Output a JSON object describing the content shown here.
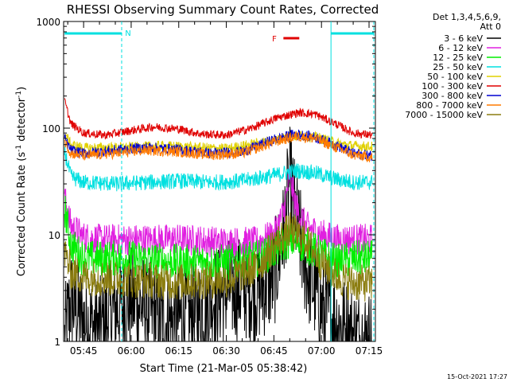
{
  "chart_data": {
    "type": "line",
    "title": "RHESSI Observing Summary Count Rates, Corrected",
    "xlabel": "Start Time (21-Mar-05 05:38:42)",
    "ylabel_main": "Corrected Count Rate (s",
    "ylabel_sup1": "-1",
    "ylabel_mid": " detector",
    "ylabel_sup2": "-1",
    "ylabel_end": ")",
    "footer": "15-Oct-2021 17:27",
    "yscale": "log",
    "ylim": [
      1,
      1000
    ],
    "xlim": [
      "05:38:42",
      "07:17:00"
    ],
    "y_ticks": [
      {
        "value": 1,
        "label": "1"
      },
      {
        "value": 10,
        "label": "10"
      },
      {
        "value": 100,
        "label": "100"
      },
      {
        "value": 1000,
        "label": "1000"
      }
    ],
    "x_ticks": [
      "05:45",
      "06:00",
      "06:15",
      "06:30",
      "06:45",
      "07:00",
      "07:15"
    ],
    "legend": {
      "header1": "Det 1,3,4,5,6,9,",
      "header2": "Att 0",
      "entries": [
        {
          "label": "3 - 6 keV",
          "color": "#000000"
        },
        {
          "label": "6 - 12 keV",
          "color": "#e020e0"
        },
        {
          "label": "12 - 25 keV",
          "color": "#00ee00"
        },
        {
          "label": "25 - 50 keV",
          "color": "#00e0e0"
        },
        {
          "label": "50 - 100 keV",
          "color": "#e0d000"
        },
        {
          "label": "100 - 300 keV",
          "color": "#e00000"
        },
        {
          "label": "300 - 800 keV",
          "color": "#0000d0"
        },
        {
          "label": "800 - 7000 keV",
          "color": "#ff7a00"
        },
        {
          "label": "7000 - 15000 keV",
          "color": "#8b7d10"
        }
      ]
    },
    "annotations": {
      "night_label": "N",
      "flare_label": "F",
      "night_color": "#00e0e0",
      "flare_color": "#e00000",
      "night_intervals": [
        [
          "05:39:00",
          "05:57:00"
        ],
        [
          "07:03:00",
          "07:16:30"
        ]
      ],
      "flare_interval": [
        "06:48:00",
        "06:53:00"
      ],
      "night_boundaries": [
        "05:57:00",
        "07:03:00",
        "07:16:30"
      ]
    },
    "series": [
      {
        "name": "3 - 6 keV",
        "color": "#000000",
        "noise": 1.0,
        "points": [
          [
            "05:39",
            1.0
          ],
          [
            "05:41",
            2.5
          ],
          [
            "05:45",
            1.5
          ],
          [
            "05:50",
            1.3
          ],
          [
            "05:55",
            2.0
          ],
          [
            "06:00",
            2.5
          ],
          [
            "06:05",
            2.0
          ],
          [
            "06:10",
            1.5
          ],
          [
            "06:15",
            1.6
          ],
          [
            "06:20",
            1.7
          ],
          [
            "06:25",
            2.5
          ],
          [
            "06:30",
            3.0
          ],
          [
            "06:35",
            3.2
          ],
          [
            "06:40",
            3.0
          ],
          [
            "06:45",
            4.0
          ],
          [
            "06:48",
            10
          ],
          [
            "06:50",
            34
          ],
          [
            "06:52",
            14
          ],
          [
            "06:55",
            5
          ],
          [
            "06:58",
            3
          ],
          [
            "07:00",
            2.0
          ],
          [
            "07:05",
            1.5
          ],
          [
            "07:10",
            1.1
          ],
          [
            "07:16",
            1.0
          ]
        ]
      },
      {
        "name": "6 - 12 keV",
        "color": "#e020e0",
        "noise": 0.3,
        "points": [
          [
            "05:39",
            22
          ],
          [
            "05:41",
            12
          ],
          [
            "05:45",
            9.5
          ],
          [
            "05:50",
            9
          ],
          [
            "06:00",
            9
          ],
          [
            "06:15",
            9
          ],
          [
            "06:30",
            8.5
          ],
          [
            "06:40",
            8.5
          ],
          [
            "06:45",
            10
          ],
          [
            "06:48",
            16
          ],
          [
            "06:50",
            36
          ],
          [
            "06:52",
            18
          ],
          [
            "06:55",
            12
          ],
          [
            "07:00",
            10
          ],
          [
            "07:05",
            9
          ],
          [
            "07:10",
            9
          ],
          [
            "07:16",
            9
          ]
        ]
      },
      {
        "name": "12 - 25 keV",
        "color": "#00ee00",
        "noise": 0.35,
        "points": [
          [
            "05:39",
            18
          ],
          [
            "05:41",
            8
          ],
          [
            "05:45",
            6
          ],
          [
            "05:50",
            6
          ],
          [
            "06:00",
            6
          ],
          [
            "06:15",
            5.5
          ],
          [
            "06:30",
            5.5
          ],
          [
            "06:40",
            6
          ],
          [
            "06:45",
            7
          ],
          [
            "06:50",
            9
          ],
          [
            "06:55",
            8
          ],
          [
            "07:00",
            6.5
          ],
          [
            "07:05",
            5.5
          ],
          [
            "07:10",
            6
          ],
          [
            "07:16",
            6
          ]
        ]
      },
      {
        "name": "25 - 50 keV",
        "color": "#00e0e0",
        "noise": 0.15,
        "points": [
          [
            "05:39",
            60
          ],
          [
            "05:41",
            35
          ],
          [
            "05:45",
            31
          ],
          [
            "05:55",
            30
          ],
          [
            "06:05",
            31
          ],
          [
            "06:15",
            32
          ],
          [
            "06:25",
            31
          ],
          [
            "06:35",
            32
          ],
          [
            "06:45",
            36
          ],
          [
            "06:52",
            40
          ],
          [
            "06:58",
            38
          ],
          [
            "07:05",
            33
          ],
          [
            "07:10",
            31
          ],
          [
            "07:16",
            31
          ]
        ]
      },
      {
        "name": "50 - 100 keV",
        "color": "#e0d000",
        "noise": 0.1,
        "points": [
          [
            "05:39",
            90
          ],
          [
            "05:41",
            70
          ],
          [
            "05:45",
            65
          ],
          [
            "06:00",
            66
          ],
          [
            "06:10",
            68
          ],
          [
            "06:20",
            66
          ],
          [
            "06:30",
            64
          ],
          [
            "06:40",
            72
          ],
          [
            "06:50",
            84
          ],
          [
            "06:55",
            85
          ],
          [
            "07:00",
            80
          ],
          [
            "07:05",
            72
          ],
          [
            "07:10",
            68
          ],
          [
            "07:16",
            67
          ]
        ]
      },
      {
        "name": "100 - 300 keV",
        "color": "#e00000",
        "noise": 0.08,
        "points": [
          [
            "05:39",
            180
          ],
          [
            "05:41",
            110
          ],
          [
            "05:45",
            90
          ],
          [
            "05:52",
            86
          ],
          [
            "06:00",
            95
          ],
          [
            "06:07",
            103
          ],
          [
            "06:15",
            98
          ],
          [
            "06:22",
            88
          ],
          [
            "06:30",
            86
          ],
          [
            "06:38",
            100
          ],
          [
            "06:46",
            125
          ],
          [
            "06:53",
            140
          ],
          [
            "06:58",
            135
          ],
          [
            "07:05",
            108
          ],
          [
            "07:10",
            90
          ],
          [
            "07:16",
            86
          ]
        ]
      },
      {
        "name": "300 - 800 keV",
        "color": "#0000d0",
        "noise": 0.1,
        "points": [
          [
            "05:39",
            80
          ],
          [
            "05:41",
            62
          ],
          [
            "05:45",
            58
          ],
          [
            "05:55",
            62
          ],
          [
            "06:05",
            66
          ],
          [
            "06:15",
            63
          ],
          [
            "06:25",
            58
          ],
          [
            "06:35",
            60
          ],
          [
            "06:45",
            78
          ],
          [
            "06:52",
            88
          ],
          [
            "06:58",
            82
          ],
          [
            "07:05",
            68
          ],
          [
            "07:10",
            58
          ],
          [
            "07:16",
            55
          ]
        ]
      },
      {
        "name": "800 - 7000 keV",
        "color": "#ff7a00",
        "noise": 0.1,
        "points": [
          [
            "05:39",
            75
          ],
          [
            "05:41",
            58
          ],
          [
            "05:45",
            55
          ],
          [
            "05:55",
            58
          ],
          [
            "06:05",
            62
          ],
          [
            "06:15",
            60
          ],
          [
            "06:25",
            56
          ],
          [
            "06:35",
            58
          ],
          [
            "06:45",
            74
          ],
          [
            "06:52",
            84
          ],
          [
            "06:58",
            80
          ],
          [
            "07:05",
            65
          ],
          [
            "07:10",
            56
          ],
          [
            "07:16",
            53
          ]
        ]
      },
      {
        "name": "7000 - 15000 keV",
        "color": "#8b7d10",
        "noise": 0.35,
        "points": [
          [
            "05:39",
            7
          ],
          [
            "05:41",
            4.5
          ],
          [
            "05:45",
            4
          ],
          [
            "06:00",
            3.8
          ],
          [
            "06:15",
            3.6
          ],
          [
            "06:30",
            3.8
          ],
          [
            "06:40",
            5
          ],
          [
            "06:45",
            8
          ],
          [
            "06:50",
            11
          ],
          [
            "06:55",
            9
          ],
          [
            "07:00",
            5.5
          ],
          [
            "07:05",
            4
          ],
          [
            "07:10",
            3.5
          ],
          [
            "07:16",
            3.5
          ]
        ]
      }
    ]
  }
}
